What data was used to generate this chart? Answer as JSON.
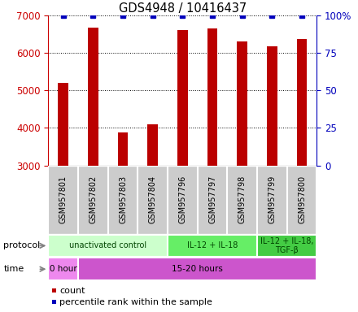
{
  "title": "GDS4948 / 10416437",
  "samples": [
    "GSM957801",
    "GSM957802",
    "GSM957803",
    "GSM957804",
    "GSM957796",
    "GSM957797",
    "GSM957798",
    "GSM957799",
    "GSM957800"
  ],
  "counts": [
    5200,
    6680,
    3870,
    4100,
    6620,
    6650,
    6310,
    6190,
    6380
  ],
  "percentile_ranks": [
    100,
    100,
    100,
    100,
    100,
    100,
    100,
    100,
    100
  ],
  "ylim_left": [
    3000,
    7000
  ],
  "ylim_right": [
    0,
    100
  ],
  "yticks_left": [
    3000,
    4000,
    5000,
    6000,
    7000
  ],
  "yticks_right": [
    0,
    25,
    50,
    75,
    100
  ],
  "bar_color": "#bb0000",
  "dot_color": "#0000bb",
  "bar_width": 0.35,
  "protocol_groups": [
    {
      "label": "unactivated control",
      "start": 0,
      "end": 4,
      "color": "#ccffcc"
    },
    {
      "label": "IL-12 + IL-18",
      "start": 4,
      "end": 7,
      "color": "#66ee66"
    },
    {
      "label": "IL-12 + IL-18,\nTGF-β",
      "start": 7,
      "end": 9,
      "color": "#44cc44"
    }
  ],
  "time_groups": [
    {
      "label": "0 hour",
      "start": 0,
      "end": 1,
      "color": "#ee88ee"
    },
    {
      "label": "15-20 hours",
      "start": 1,
      "end": 9,
      "color": "#cc55cc"
    }
  ],
  "legend_count_color": "#bb0000",
  "legend_pct_color": "#0000bb",
  "left_axis_color": "#cc0000",
  "right_axis_color": "#0000bb",
  "grid_color": "black",
  "sample_cell_color": "#cccccc",
  "background_color": "#ffffff"
}
